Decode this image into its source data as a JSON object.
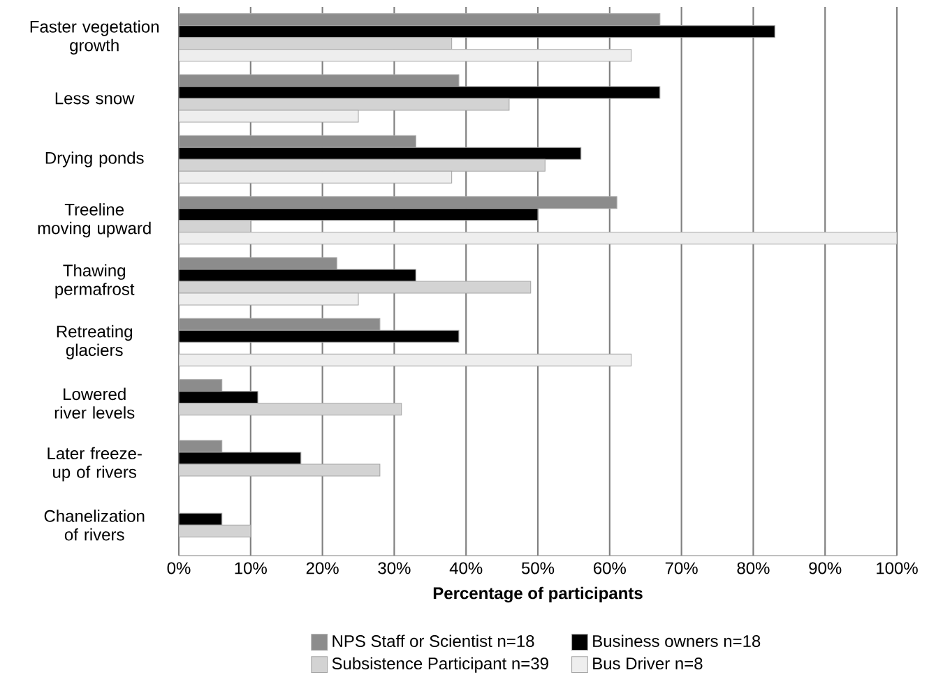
{
  "chart_data": {
    "type": "bar",
    "orientation": "horizontal",
    "xlabel": "Percentage of participants",
    "categories": [
      "Faster vegetation growth",
      "Less snow",
      "Drying ponds",
      "Treeline moving upward",
      "Thawing permafrost",
      "Retreating glaciers",
      "Lowered river levels",
      "Later freeze-up of rivers",
      "Chanelization of rivers"
    ],
    "series": [
      {
        "name": "NPS Staff or Scientist n=18",
        "color": "#8c8c8c",
        "values": [
          67,
          39,
          33,
          61,
          22,
          28,
          6,
          6,
          null
        ]
      },
      {
        "name": "Business owners n=18",
        "color": "#000000",
        "values": [
          83,
          67,
          56,
          50,
          33,
          39,
          11,
          17,
          6
        ]
      },
      {
        "name": "Subsistence Participant n=39",
        "color": "#d3d3d3",
        "values": [
          38,
          46,
          51,
          10,
          49,
          null,
          31,
          28,
          10
        ]
      },
      {
        "name": "Bus Driver n=8",
        "color": "#eeeeee",
        "values": [
          63,
          25,
          38,
          100,
          25,
          63,
          null,
          null,
          null
        ]
      }
    ],
    "xlim": [
      0,
      100
    ],
    "xticks": [
      {
        "value": 0,
        "label": "0%"
      },
      {
        "value": 10,
        "label": "10%"
      },
      {
        "value": 20,
        "label": "20%"
      },
      {
        "value": 30,
        "label": "30%"
      },
      {
        "value": 40,
        "label": "40%"
      },
      {
        "value": 50,
        "label": "50%"
      },
      {
        "value": 60,
        "label": "60%"
      },
      {
        "value": 70,
        "label": "70%"
      },
      {
        "value": 80,
        "label": "80%"
      },
      {
        "value": 90,
        "label": "90%"
      },
      {
        "value": 100,
        "label": "100%"
      }
    ],
    "grid": "x",
    "legend": "bottom"
  }
}
